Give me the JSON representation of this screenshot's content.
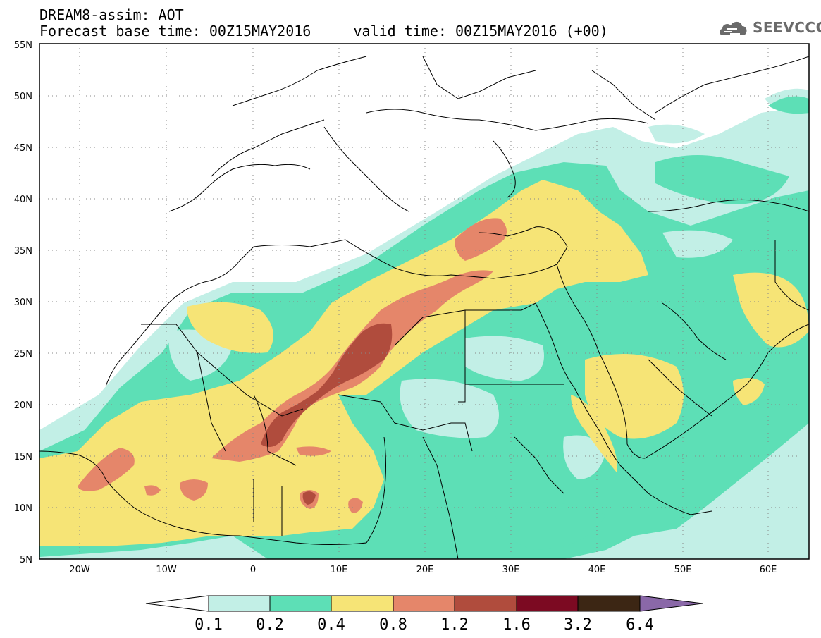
{
  "title": {
    "line1": "DREAM8-assim: AOT",
    "line2": "Forecast base time: 00Z15MAY2016     valid time: 00Z15MAY2016 (+00)"
  },
  "logo": {
    "text": "SEEVCCC",
    "icon": "cloud-icon"
  },
  "map": {
    "lat_range": [
      5,
      55
    ],
    "lon_range": [
      -25,
      65
    ],
    "lat_ticks": [
      "5N",
      "10N",
      "15N",
      "20N",
      "25N",
      "30N",
      "35N",
      "40N",
      "45N",
      "50N",
      "55N"
    ],
    "lon_ticks": [
      "20W",
      "10W",
      "0",
      "10E",
      "20E",
      "30E",
      "40E",
      "50E",
      "60E"
    ],
    "grid": "dotted"
  },
  "colorbar": {
    "labels": [
      "0.1",
      "0.2",
      "0.4",
      "0.8",
      "1.2",
      "1.6",
      "3.2",
      "6.4"
    ],
    "colors": [
      "#ffffff",
      "#c2efe6",
      "#5ddfb6",
      "#f6e476",
      "#e5866a",
      "#b04c3d",
      "#7c0a22",
      "#3c2614",
      "#8a68a8"
    ]
  },
  "colors": {
    "aot_0_1_0_2": "#c2efe6",
    "aot_0_2_0_4": "#5ddfb6",
    "aot_0_4_0_8": "#f6e476",
    "aot_0_8_1_2": "#e5866a",
    "aot_1_2_1_6": "#b04c3d",
    "border": "#000000"
  }
}
